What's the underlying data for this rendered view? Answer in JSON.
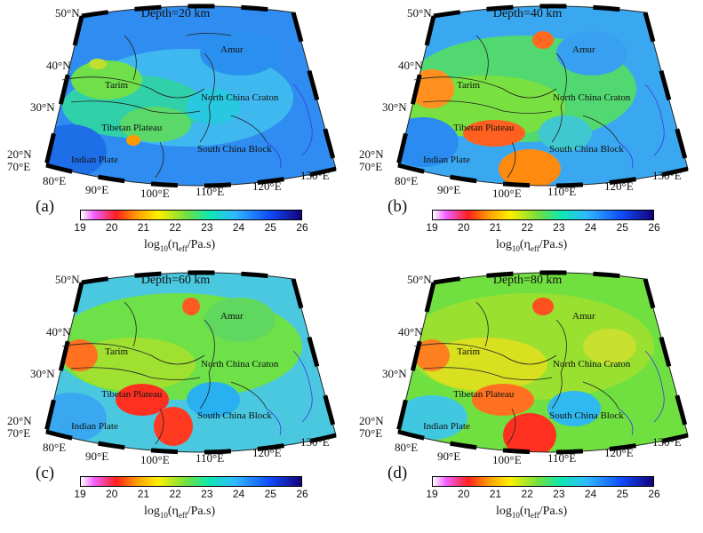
{
  "panels": [
    {
      "letter": "(a)",
      "title": "Depth=20 km"
    },
    {
      "letter": "(b)",
      "title": "Depth=40 km"
    },
    {
      "letter": "(c)",
      "title": "Depth=60 km"
    },
    {
      "letter": "(d)",
      "title": "Depth=80 km"
    }
  ],
  "lat_labels": [
    "50°N",
    "40°N",
    "30°N",
    "20°N"
  ],
  "lon_labels": [
    "70°E",
    "80°E",
    "90°E",
    "100°E",
    "110°E",
    "120°E",
    "130°E"
  ],
  "region_labels": [
    "Amur",
    "Tarim",
    "North China Craton",
    "Tibetan Plateau",
    "South China Block",
    "Indian Plate"
  ],
  "colorbar": {
    "ticks": [
      "19",
      "20",
      "21",
      "22",
      "23",
      "24",
      "25",
      "26"
    ],
    "label_prefix": "log",
    "label_base": "10",
    "label_open": "(η",
    "label_sub": "eff",
    "label_rest": "/Pa.s)"
  },
  "colors": {
    "low": "#ff2020",
    "mid": "#70e040",
    "high": "#1050ff",
    "max": "#14007a"
  }
}
